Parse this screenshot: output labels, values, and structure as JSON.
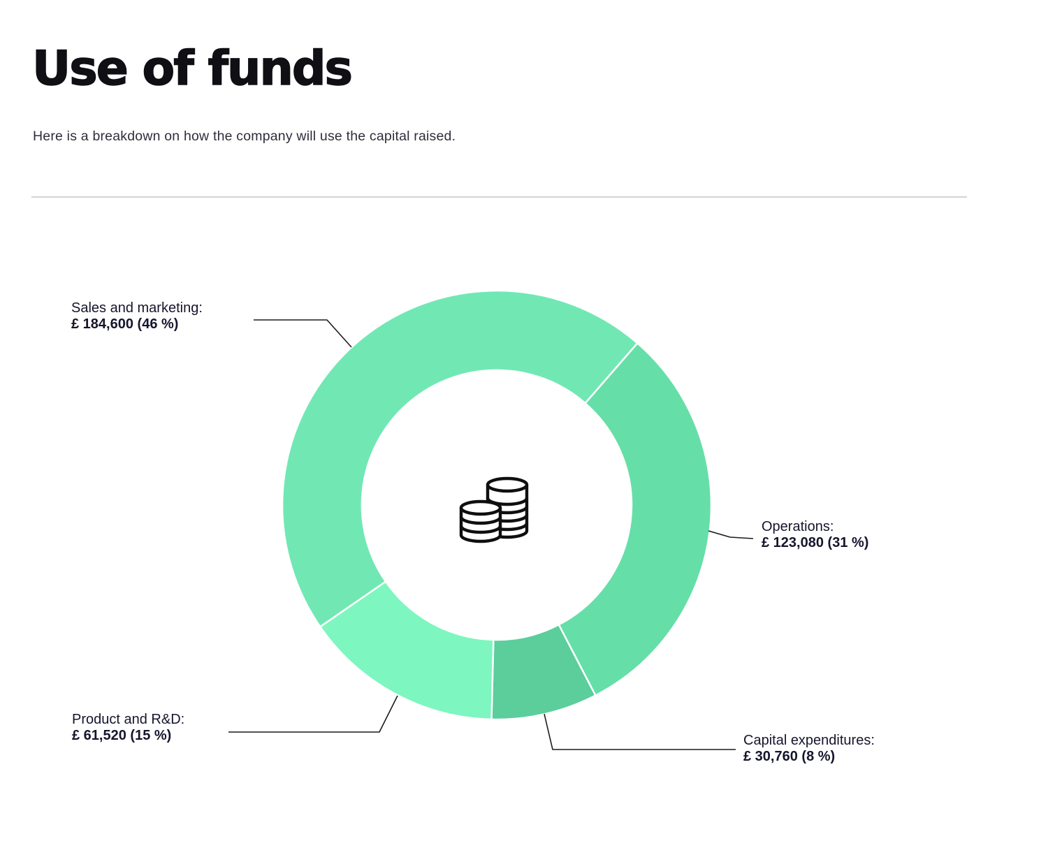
{
  "page": {
    "title": "Use of funds",
    "subtitle": "Here is a breakdown on how the company will use the capital raised."
  },
  "chart_data": {
    "type": "pie",
    "donut": true,
    "title": "Use of funds",
    "currency": "£",
    "legend_style": "callout-labels-with-leader-lines",
    "center_icon": "coins-icon",
    "start_angle_deg": 235.4,
    "clockwise": true,
    "separator_color": "#ffffff",
    "segments": [
      {
        "label": "Sales and marketing:",
        "value_text": "£ 184,600 (46 %)",
        "amount": 184600,
        "pct": 46,
        "color": "#71E8B4"
      },
      {
        "label": "Operations:",
        "value_text": "£ 123,080 (31 %)",
        "amount": 123080,
        "pct": 31,
        "color": "#66DEA8"
      },
      {
        "label": "Capital expenditures:",
        "value_text": "£ 30,760 (8 %)",
        "amount": 30760,
        "pct": 8,
        "color": "#5BCE9C"
      },
      {
        "label": "Product and R&D:",
        "value_text": "£ 61,520 (15 %)",
        "amount": 61520,
        "pct": 15,
        "color": "#7DF6BF"
      }
    ]
  }
}
